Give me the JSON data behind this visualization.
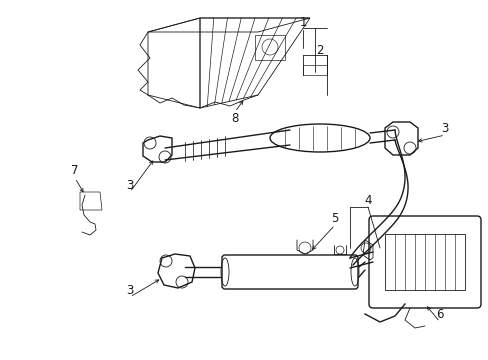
{
  "bg_color": "#ffffff",
  "line_color": "#1a1a1a",
  "figsize": [
    4.89,
    3.6
  ],
  "dpi": 100,
  "lw_main": 1.0,
  "lw_thin": 0.6,
  "font_size": 7.5
}
